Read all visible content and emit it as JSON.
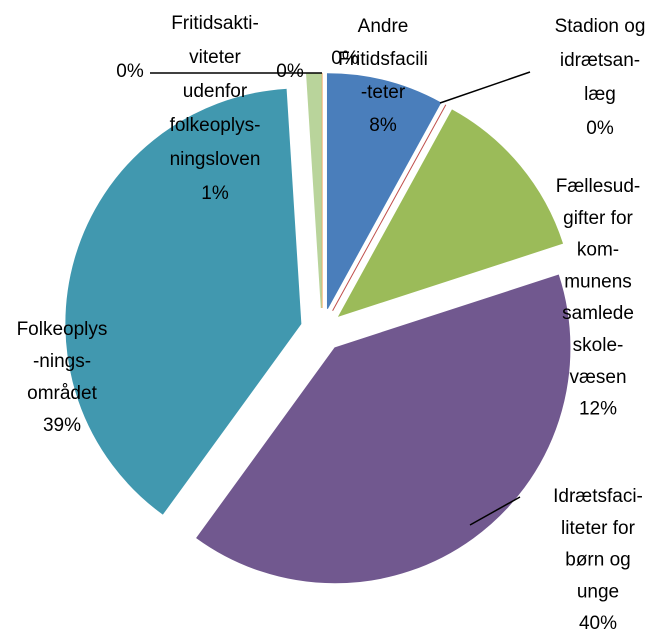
{
  "chart_data": {
    "type": "pie",
    "categories": [
      [
        "Andre",
        "Fritidsfacili",
        "-teter"
      ],
      [
        "Stadion og",
        "idrætsan-",
        "læg"
      ],
      [
        "Fællesud-",
        "gifter for",
        "kom-",
        "munens",
        "samlede",
        "skole-",
        "væsen"
      ],
      [
        "Idrætsfaci-",
        "liteter for",
        "børn og",
        "unge"
      ],
      [
        "Folkeoplys",
        "-nings-",
        "området"
      ],
      [
        "Fritidsakti-",
        "viteter",
        "udenfor",
        "folkeoplys-",
        "ningsloven"
      ],
      null,
      null,
      null
    ],
    "values": [
      8,
      0,
      12,
      40,
      39,
      1,
      0,
      0,
      0
    ],
    "value_labels": [
      "8%",
      "0%",
      "12%",
      "40%",
      "39%",
      "1%",
      "0%",
      "0%",
      "0%"
    ],
    "colors": [
      "#4a7ebb",
      "#c0504d",
      "#9bbb59",
      "#71588f",
      "#4198af",
      "#b9d49b",
      "#f79646",
      "#2c4d75",
      "#772c2a"
    ]
  }
}
